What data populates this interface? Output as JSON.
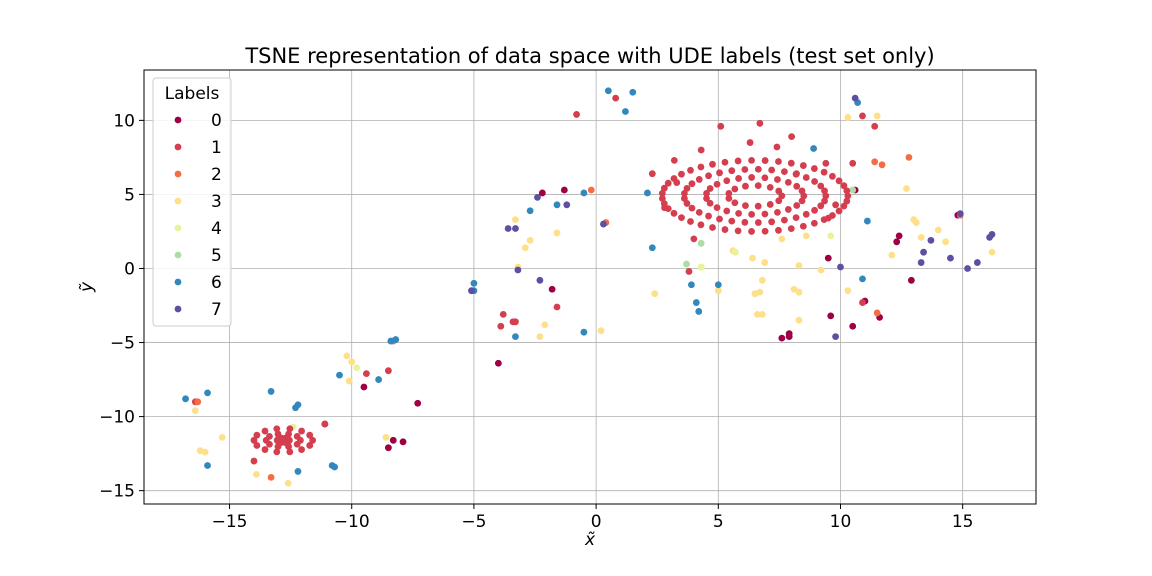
{
  "chart_data": {
    "type": "scatter",
    "title": "TSNE representation of data space with UDE labels (test set only)",
    "xlabel": "x̃",
    "ylabel": "ỹ",
    "xlim": [
      -18.5,
      18.0
    ],
    "ylim": [
      -15.9,
      13.4
    ],
    "xticks": [
      -15,
      -10,
      -5,
      0,
      5,
      10,
      15
    ],
    "yticks": [
      -15,
      -10,
      -5,
      0,
      5,
      10
    ],
    "xtick_labels": [
      "−15",
      "−10",
      "−5",
      "0",
      "5",
      "10",
      "15"
    ],
    "ytick_labels": [
      "−15",
      "−10",
      "−5",
      "0",
      "5",
      "10"
    ],
    "grid": true,
    "legend": {
      "title": "Labels",
      "placement": "top-left"
    },
    "series": [
      {
        "name": "0",
        "color": "#9e0142",
        "points": [
          [
            -11.1,
            -10.5
          ],
          [
            -9.5,
            -8.0
          ],
          [
            -8.5,
            -12.1
          ],
          [
            -8.3,
            -11.6
          ],
          [
            -7.9,
            -11.7
          ],
          [
            -7.3,
            -9.1
          ],
          [
            -4.0,
            -6.4
          ],
          [
            -2.2,
            5.1
          ],
          [
            -1.8,
            -1.4
          ],
          [
            -1.3,
            5.3
          ],
          [
            7.6,
            -4.7
          ],
          [
            7.9,
            -4.4
          ],
          [
            7.9,
            -4.6
          ],
          [
            9.6,
            -3.2
          ],
          [
            9.5,
            0.7
          ],
          [
            10.6,
            5.3
          ],
          [
            10.5,
            -3.9
          ],
          [
            11.0,
            -2.2
          ],
          [
            11.6,
            -3.3
          ],
          [
            12.3,
            1.8
          ],
          [
            12.4,
            2.2
          ],
          [
            12.9,
            -0.8
          ],
          [
            14.8,
            3.6
          ]
        ]
      },
      {
        "name": "1",
        "color": "#d53e4f",
        "points": [
          [
            -16.4,
            -9.0
          ],
          [
            -14.0,
            -13.0
          ],
          [
            -11.1,
            -10.5
          ],
          [
            -9.4,
            -7.1
          ],
          [
            -8.5,
            -6.9
          ],
          [
            -3.8,
            -3.1
          ],
          [
            -3.4,
            -3.6
          ],
          [
            -3.3,
            -3.6
          ],
          [
            -3.9,
            -3.9
          ],
          [
            -1.6,
            -2.6
          ],
          [
            -0.8,
            10.4
          ],
          [
            0.8,
            11.5
          ],
          [
            2.3,
            6.4
          ],
          [
            2.8,
            4.1
          ],
          [
            3.2,
            7.3
          ],
          [
            3.3,
            5.8
          ],
          [
            3.8,
            -0.2
          ],
          [
            4.0,
            2.0
          ],
          [
            4.3,
            8.0
          ],
          [
            5.1,
            9.6
          ],
          [
            6.3,
            8.5
          ],
          [
            6.7,
            9.8
          ],
          [
            7.4,
            8.2
          ],
          [
            8.0,
            8.9
          ],
          [
            8.2,
            6.4
          ],
          [
            9.4,
            7.1
          ],
          [
            9.5,
            3.4
          ],
          [
            9.8,
            4.3
          ],
          [
            10.5,
            7.1
          ],
          [
            10.9,
            10.3
          ],
          [
            10.9,
            -2.3
          ],
          [
            11.4,
            9.6
          ]
        ]
      },
      {
        "name": "2",
        "color": "#f46d43",
        "points": [
          [
            -16.3,
            -9.0
          ],
          [
            -13.3,
            -14.1
          ],
          [
            -8.3,
            -4.9
          ],
          [
            -0.2,
            5.3
          ],
          [
            0.4,
            3.1
          ],
          [
            11.4,
            7.2
          ],
          [
            11.5,
            -3.0
          ],
          [
            11.7,
            7.0
          ],
          [
            12.8,
            7.5
          ],
          [
            14.9,
            3.6
          ]
        ]
      },
      {
        "name": "3",
        "color": "#fee08b",
        "points": [
          [
            -16.4,
            -9.6
          ],
          [
            -16.2,
            -12.3
          ],
          [
            -16.0,
            -12.4
          ],
          [
            -15.3,
            -11.4
          ],
          [
            -13.9,
            -13.9
          ],
          [
            -12.6,
            -14.5
          ],
          [
            -10.2,
            -5.9
          ],
          [
            -10.0,
            -6.3
          ],
          [
            -10.1,
            -7.6
          ],
          [
            -8.6,
            -11.4
          ],
          [
            -3.3,
            3.3
          ],
          [
            -3.2,
            0.1
          ],
          [
            -2.9,
            1.4
          ],
          [
            -2.7,
            1.9
          ],
          [
            -2.3,
            -4.6
          ],
          [
            -2.1,
            -3.8
          ],
          [
            -1.6,
            2.4
          ],
          [
            0.2,
            -4.2
          ],
          [
            2.4,
            -1.7
          ],
          [
            4.3,
            0.1
          ],
          [
            5.0,
            -1.5
          ],
          [
            5.6,
            1.2
          ],
          [
            6.4,
            0.7
          ],
          [
            6.5,
            -1.7
          ],
          [
            6.6,
            -3.1
          ],
          [
            6.7,
            -1.6
          ],
          [
            6.8,
            -3.1
          ],
          [
            6.8,
            -0.8
          ],
          [
            6.9,
            0.4
          ],
          [
            7.6,
            2.0
          ],
          [
            8.1,
            -1.4
          ],
          [
            8.3,
            -3.5
          ],
          [
            8.3,
            0.2
          ],
          [
            8.3,
            -1.6
          ],
          [
            8.6,
            2.2
          ],
          [
            9.2,
            -0.1
          ],
          [
            10.3,
            -1.5
          ],
          [
            10.3,
            10.2
          ],
          [
            11.5,
            10.3
          ],
          [
            12.1,
            0.9
          ],
          [
            12.7,
            5.4
          ],
          [
            13.0,
            3.3
          ],
          [
            13.1,
            3.1
          ],
          [
            13.3,
            2.1
          ],
          [
            14.0,
            2.6
          ],
          [
            14.3,
            1.8
          ],
          [
            16.2,
            1.1
          ]
        ]
      },
      {
        "name": "4",
        "color": "#e6f598",
        "points": [
          [
            -12.4,
            -10.7
          ],
          [
            -9.8,
            -6.7
          ],
          [
            4.3,
            0.1
          ],
          [
            5.7,
            1.1
          ],
          [
            9.6,
            2.2
          ]
        ]
      },
      {
        "name": "5",
        "color": "#abdda4",
        "points": [
          [
            3.7,
            0.3
          ],
          [
            4.3,
            1.7
          ],
          [
            10.5,
            5.3
          ]
        ]
      },
      {
        "name": "6",
        "color": "#3288bd",
        "points": [
          [
            -16.8,
            -8.8
          ],
          [
            -15.9,
            -8.4
          ],
          [
            -15.9,
            -13.3
          ],
          [
            -13.3,
            -8.3
          ],
          [
            -12.2,
            -9.2
          ],
          [
            -12.3,
            -9.4
          ],
          [
            -12.2,
            -13.7
          ],
          [
            -10.8,
            -13.3
          ],
          [
            -10.7,
            -13.4
          ],
          [
            -10.5,
            -7.2
          ],
          [
            -8.9,
            -7.5
          ],
          [
            -8.4,
            -4.9
          ],
          [
            -8.2,
            -4.8
          ],
          [
            -5.0,
            -1.0
          ],
          [
            -5.0,
            -1.5
          ],
          [
            -3.3,
            -4.6
          ],
          [
            -2.7,
            3.9
          ],
          [
            -1.6,
            4.3
          ],
          [
            -0.5,
            -4.3
          ],
          [
            -0.5,
            5.1
          ],
          [
            0.5,
            12.0
          ],
          [
            1.2,
            10.6
          ],
          [
            1.5,
            11.9
          ],
          [
            2.1,
            5.1
          ],
          [
            2.3,
            1.4
          ],
          [
            3.9,
            -1.1
          ],
          [
            4.1,
            -2.3
          ],
          [
            4.2,
            -2.9
          ],
          [
            5.0,
            -1.1
          ],
          [
            8.9,
            8.1
          ],
          [
            10.7,
            11.2
          ],
          [
            10.9,
            -0.7
          ],
          [
            11.1,
            3.2
          ]
        ]
      },
      {
        "name": "7",
        "color": "#5e4fa2",
        "points": [
          [
            -5.1,
            -1.5
          ],
          [
            -3.6,
            2.7
          ],
          [
            -3.3,
            2.7
          ],
          [
            -3.2,
            -0.1
          ],
          [
            -2.3,
            -0.8
          ],
          [
            -2.4,
            4.8
          ],
          [
            -1.2,
            4.3
          ],
          [
            0.3,
            3.0
          ],
          [
            9.8,
            -4.6
          ],
          [
            10.0,
            0.1
          ],
          [
            10.6,
            11.5
          ],
          [
            13.3,
            0.4
          ],
          [
            13.4,
            1.1
          ],
          [
            13.7,
            1.9
          ],
          [
            14.5,
            0.7
          ],
          [
            14.9,
            3.7
          ],
          [
            15.2,
            0.0
          ],
          [
            15.6,
            0.4
          ],
          [
            16.1,
            2.1
          ],
          [
            16.2,
            2.3
          ]
        ]
      },
      {
        "name": "",
        "color": "#d53e4f",
        "cluster": "ring",
        "center": [
          -12.8,
          -11.6
        ],
        "radii": [
          [
            1.2,
            0.8
          ],
          [
            0.7,
            0.45
          ],
          [
            0.25,
            0.15
          ]
        ]
      },
      {
        "name": "",
        "color": "#d53e4f",
        "cluster": "ring",
        "center": [
          6.5,
          4.9
        ],
        "radii": [
          [
            3.8,
            2.4
          ],
          [
            2.9,
            1.8
          ],
          [
            2.0,
            1.25
          ],
          [
            1.1,
            0.7
          ]
        ]
      }
    ]
  }
}
